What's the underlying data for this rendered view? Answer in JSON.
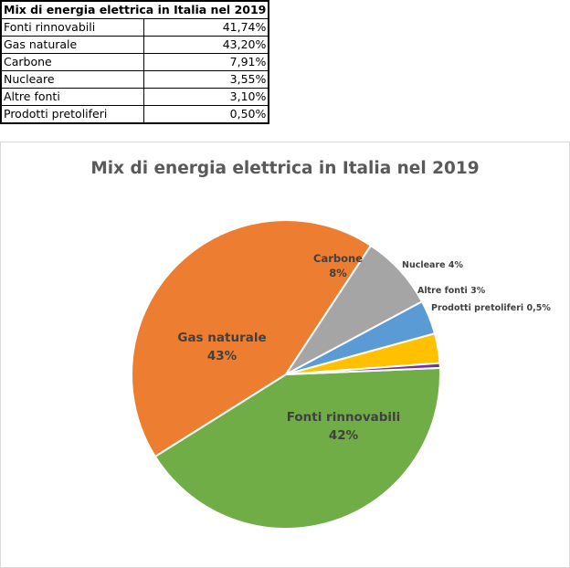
{
  "table": {
    "title": "Mix di energia elettrica in Italia nel 2019",
    "rows": [
      {
        "label": "Fonti rinnovabili",
        "value": "41,74%"
      },
      {
        "label": "Gas naturale",
        "value": "43,20%"
      },
      {
        "label": "Carbone",
        "value": "7,91%"
      },
      {
        "label": "Nucleare",
        "value": "3,55%"
      },
      {
        "label": "Altre fonti",
        "value": "3,10%"
      },
      {
        "label": "Prodotti pretoliferi",
        "value": "0,50%"
      }
    ]
  },
  "chart_data": {
    "type": "pie",
    "title": "Mix di energia elettrica in Italia nel 2019",
    "legend": "none",
    "slices": [
      {
        "name": "Fonti rinnovabili",
        "value": 41.74,
        "label_pct": "42%",
        "color": "#70ad47",
        "label_mode": "inside-two-line"
      },
      {
        "name": "Gas naturale",
        "value": 43.2,
        "label_pct": "43%",
        "color": "#ed7d31",
        "label_mode": "inside-two-line"
      },
      {
        "name": "Carbone",
        "value": 7.91,
        "label_pct": "8%",
        "color": "#a5a5a5",
        "label_mode": "inside-two-line"
      },
      {
        "name": "Nucleare",
        "value": 3.55,
        "label_pct": "4%",
        "color": "#5b9bd5",
        "label_mode": "outside-one-line"
      },
      {
        "name": "Altre fonti",
        "value": 3.1,
        "label_pct": "3%",
        "color": "#ffc000",
        "label_mode": "outside-one-line"
      },
      {
        "name": "Prodotti pretoliferi",
        "value": 0.5,
        "label_pct": "0,5%",
        "color": "#7030a0",
        "label_mode": "outside-one-line"
      }
    ]
  }
}
